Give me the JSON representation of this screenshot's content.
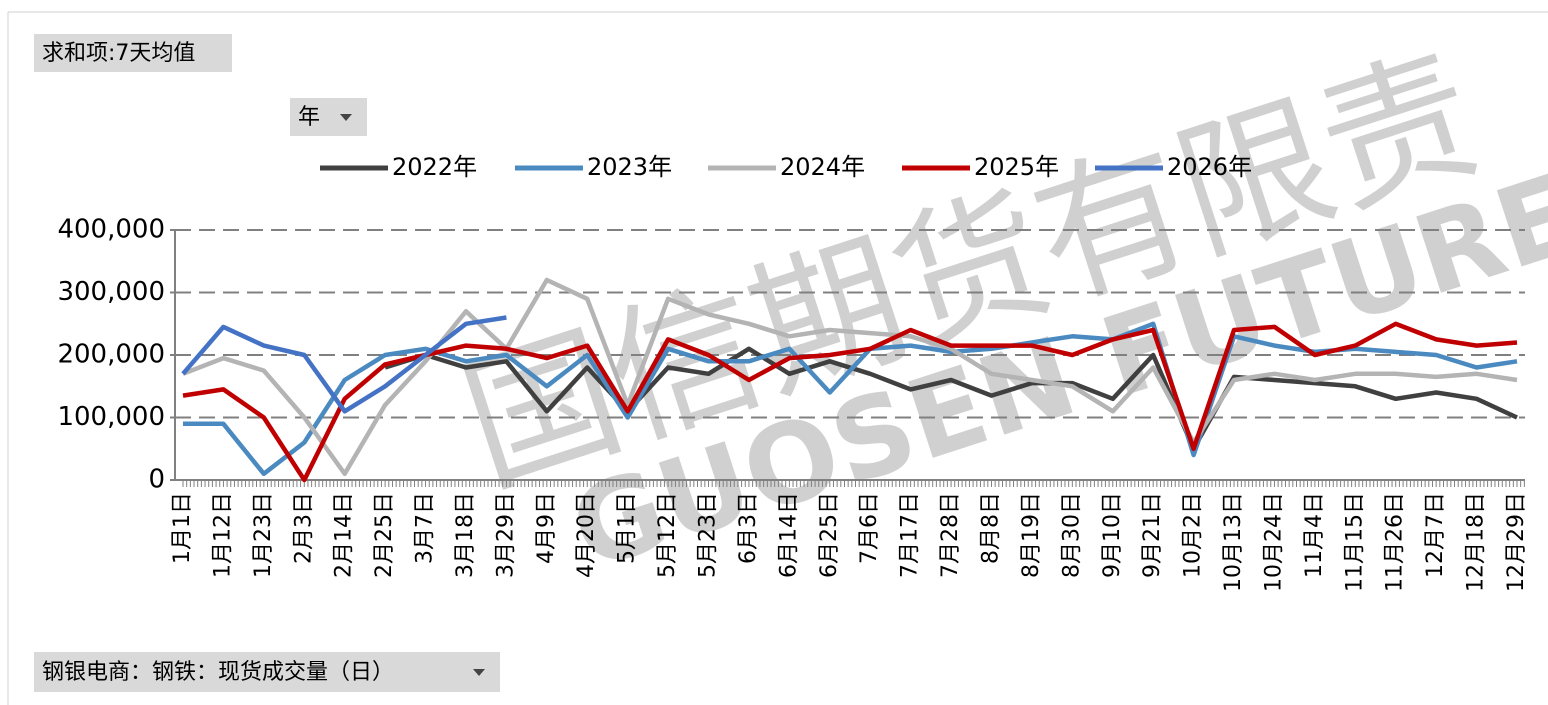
{
  "chart_data": {
    "type": "line",
    "field_label": "求和项:7天均值",
    "filter_label": "年",
    "axis_field_label": "钢银电商：钢铁：现货成交量（日）",
    "watermark": [
      "国信期货有限责",
      "GUOSEN FUTURES CO"
    ],
    "categories": [
      "1月1日",
      "1月12日",
      "1月23日",
      "2月3日",
      "2月14日",
      "2月25日",
      "3月7日",
      "3月18日",
      "3月29日",
      "4月9日",
      "4月20日",
      "5月1日",
      "5月12日",
      "5月23日",
      "6月3日",
      "6月14日",
      "6月25日",
      "7月6日",
      "7月17日",
      "7月28日",
      "8月8日",
      "8月19日",
      "8月30日",
      "9月10日",
      "9月21日",
      "10月2日",
      "10月13日",
      "10月24日",
      "11月4日",
      "11月15日",
      "11月26日",
      "12月7日",
      "12月18日",
      "12月29日"
    ],
    "series": [
      {
        "name": "2022年",
        "color": "#404040",
        "values": [
          null,
          null,
          null,
          null,
          null,
          180000,
          200000,
          180000,
          190000,
          110000,
          180000,
          110000,
          180000,
          170000,
          210000,
          170000,
          190000,
          170000,
          145000,
          160000,
          135000,
          155000,
          155000,
          130000,
          200000,
          50000,
          165000,
          160000,
          155000,
          150000,
          130000,
          140000,
          130000,
          100000
        ]
      },
      {
        "name": "2023年",
        "color": "#4a8ac0",
        "values": [
          90000,
          90000,
          10000,
          60000,
          160000,
          200000,
          210000,
          190000,
          200000,
          150000,
          200000,
          100000,
          210000,
          190000,
          190000,
          210000,
          140000,
          210000,
          215000,
          205000,
          210000,
          220000,
          230000,
          225000,
          250000,
          40000,
          230000,
          215000,
          205000,
          210000,
          205000,
          200000,
          180000,
          190000
        ]
      },
      {
        "name": "2024年",
        "color": "#b4b4b4",
        "values": [
          170000,
          195000,
          175000,
          100000,
          10000,
          120000,
          190000,
          270000,
          210000,
          320000,
          290000,
          120000,
          290000,
          265000,
          250000,
          230000,
          240000,
          235000,
          230000,
          210000,
          170000,
          160000,
          150000,
          110000,
          180000,
          60000,
          160000,
          170000,
          160000,
          170000,
          170000,
          165000,
          170000,
          160000
        ]
      },
      {
        "name": "2025年",
        "color": "#c00000",
        "values": [
          135000,
          145000,
          100000,
          0,
          130000,
          185000,
          200000,
          215000,
          210000,
          195000,
          215000,
          110000,
          225000,
          200000,
          160000,
          195000,
          200000,
          210000,
          240000,
          215000,
          215000,
          215000,
          200000,
          225000,
          240000,
          50000,
          240000,
          245000,
          200000,
          215000,
          250000,
          225000,
          215000,
          220000
        ]
      },
      {
        "name": "2026年",
        "color": "#4472c4",
        "values": [
          170000,
          245000,
          215000,
          200000,
          110000,
          150000,
          200000,
          250000,
          260000,
          null,
          null,
          null,
          null,
          null,
          null,
          null,
          null,
          null,
          null,
          null,
          null,
          null,
          null,
          null,
          null,
          null,
          null,
          null,
          null,
          null,
          null,
          null,
          null,
          null
        ]
      }
    ],
    "ylim": [
      0,
      400000
    ],
    "yticks": [
      0,
      {
        "value": 100000,
        "label": "100,000"
      },
      {
        "value": 200000,
        "label": "200,000"
      },
      {
        "value": 300000,
        "label": "300,000"
      },
      {
        "value": 400000,
        "label": "400,000"
      }
    ],
    "grid": true,
    "legend": "top"
  }
}
